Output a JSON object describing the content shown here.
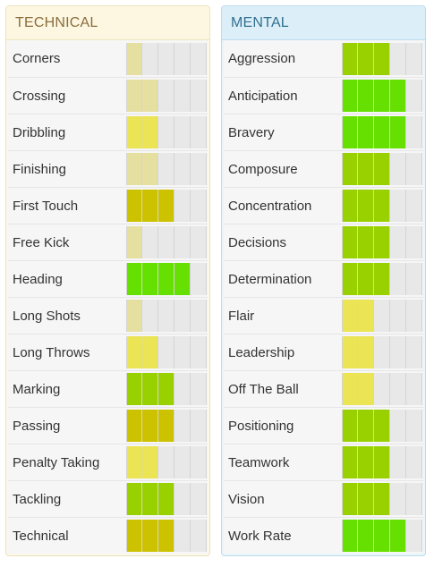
{
  "colors": {
    "empty": "#e8e8e8",
    "level1": "#e5e0a0",
    "level2": "#ebe454",
    "level3": "#ccc200",
    "level4": "#99d100",
    "level5": "#66e000"
  },
  "bar_segments": 5,
  "technical": {
    "title": "TECHNICAL",
    "attributes": [
      {
        "name": "Corners",
        "filled": 1,
        "level": "level1"
      },
      {
        "name": "Crossing",
        "filled": 2,
        "level": "level1"
      },
      {
        "name": "Dribbling",
        "filled": 2,
        "level": "level2"
      },
      {
        "name": "Finishing",
        "filled": 2,
        "level": "level1"
      },
      {
        "name": "First Touch",
        "filled": 3,
        "level": "level3"
      },
      {
        "name": "Free Kick",
        "filled": 1,
        "level": "level1"
      },
      {
        "name": "Heading",
        "filled": 4,
        "level": "level5"
      },
      {
        "name": "Long Shots",
        "filled": 1,
        "level": "level1"
      },
      {
        "name": "Long Throws",
        "filled": 2,
        "level": "level2"
      },
      {
        "name": "Marking",
        "filled": 3,
        "level": "level4"
      },
      {
        "name": "Passing",
        "filled": 3,
        "level": "level3"
      },
      {
        "name": "Penalty Taking",
        "filled": 2,
        "level": "level2"
      },
      {
        "name": "Tackling",
        "filled": 3,
        "level": "level4"
      },
      {
        "name": "Technical",
        "filled": 3,
        "level": "level3"
      }
    ]
  },
  "mental": {
    "title": "MENTAL",
    "attributes": [
      {
        "name": "Aggression",
        "filled": 3,
        "level": "level4"
      },
      {
        "name": "Anticipation",
        "filled": 4,
        "level": "level5"
      },
      {
        "name": "Bravery",
        "filled": 4,
        "level": "level5"
      },
      {
        "name": "Composure",
        "filled": 3,
        "level": "level4"
      },
      {
        "name": "Concentration",
        "filled": 3,
        "level": "level4"
      },
      {
        "name": "Decisions",
        "filled": 3,
        "level": "level4"
      },
      {
        "name": "Determination",
        "filled": 3,
        "level": "level4"
      },
      {
        "name": "Flair",
        "filled": 2,
        "level": "level2"
      },
      {
        "name": "Leadership",
        "filled": 2,
        "level": "level2"
      },
      {
        "name": "Off The Ball",
        "filled": 2,
        "level": "level2"
      },
      {
        "name": "Positioning",
        "filled": 3,
        "level": "level4"
      },
      {
        "name": "Teamwork",
        "filled": 3,
        "level": "level4"
      },
      {
        "name": "Vision",
        "filled": 3,
        "level": "level4"
      },
      {
        "name": "Work Rate",
        "filled": 4,
        "level": "level5"
      }
    ]
  }
}
